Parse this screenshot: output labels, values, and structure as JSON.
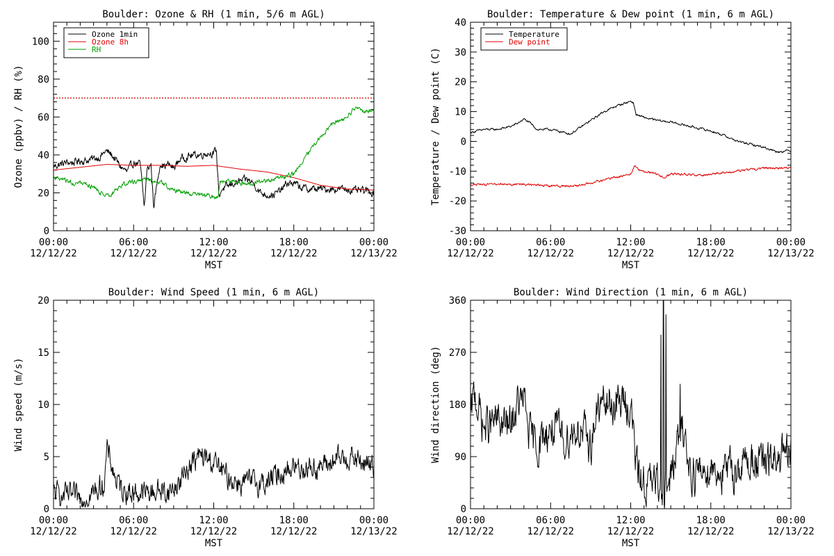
{
  "chart_data": [
    {
      "type": "line",
      "title": "Boulder: Ozone & RH (1 min, 5/6 m AGL)",
      "xlabel": "MST",
      "ylabel": "Ozone (ppbv) / RH (%)",
      "xlim": [
        0,
        24
      ],
      "ylim": [
        0,
        110
      ],
      "yticks": [
        0,
        20,
        40,
        60,
        80,
        100
      ],
      "xticks": [
        {
          "time": "00:00",
          "date": "12/12/22"
        },
        {
          "time": "06:00",
          "date": "12/12/22"
        },
        {
          "time": "12:00",
          "date": "12/12/22"
        },
        {
          "time": "18:00",
          "date": "12/12/22"
        },
        {
          "time": "00:00",
          "date": "12/13/22"
        }
      ],
      "legend_position": "top-left",
      "reference_line": {
        "y": 70,
        "color": "#d01010",
        "style": "dotted"
      },
      "series": [
        {
          "name": "Ozone 1min",
          "color": "#000000",
          "noise": 1.6,
          "x": [
            0,
            0.5,
            1,
            1.5,
            2,
            2.5,
            3,
            3.5,
            3.9,
            4.2,
            4.6,
            5,
            5.5,
            6,
            6.5,
            6.8,
            7,
            7.3,
            7.5,
            8,
            8.3,
            8.6,
            9,
            9.5,
            10,
            10.5,
            11,
            11.5,
            12,
            12.2,
            12.4,
            12.6,
            13,
            13.5,
            14,
            14.5,
            15,
            15.5,
            16,
            16.5,
            17,
            17.5,
            18,
            18.5,
            19,
            19.5,
            20,
            20.5,
            21,
            21.5,
            22,
            22.5,
            23,
            23.5,
            24
          ],
          "y": [
            34,
            35,
            36,
            36,
            37,
            37,
            38,
            39,
            42,
            41,
            38,
            34,
            31,
            36,
            35,
            12,
            32,
            35,
            13,
            36,
            34,
            35,
            33,
            38,
            39,
            40,
            40,
            41,
            41,
            42,
            18,
            22,
            23,
            25,
            26,
            27,
            25,
            20,
            19,
            19,
            21,
            25,
            25,
            23,
            22,
            22,
            22,
            22,
            22,
            22,
            22,
            21,
            21,
            21,
            20
          ]
        },
        {
          "name": "Ozone 8h",
          "color": "#e00000",
          "noise": 0,
          "x": [
            0,
            2,
            4,
            6,
            8,
            10,
            12,
            14,
            16,
            18,
            20,
            22,
            24
          ],
          "y": [
            32,
            33.5,
            35,
            34.5,
            34.5,
            34,
            34.5,
            32.5,
            31,
            28,
            24,
            22,
            21.5
          ]
        },
        {
          "name": "RH",
          "color": "#00a000",
          "noise": 1.0,
          "x": [
            0,
            1,
            2,
            3,
            3.8,
            4.3,
            5,
            6,
            7,
            8,
            9,
            10,
            11,
            12,
            12.3,
            12.5,
            13,
            14,
            15,
            16,
            17,
            18,
            18.5,
            19,
            20,
            21,
            21.5,
            22,
            22.7,
            23,
            23.5,
            24
          ],
          "y": [
            28,
            26,
            25,
            23,
            18,
            19,
            24,
            26,
            27,
            26,
            21,
            20,
            19,
            18,
            17,
            26,
            26,
            25,
            25,
            26,
            28,
            30,
            35,
            40,
            50,
            57,
            58,
            60,
            66,
            63,
            63,
            63
          ]
        }
      ]
    },
    {
      "type": "line",
      "title": "Boulder: Temperature & Dew point (1 min, 6 m AGL)",
      "xlabel": "MST",
      "ylabel": "Temperature / Dew point (C)",
      "xlim": [
        0,
        24
      ],
      "ylim": [
        -30,
        40
      ],
      "yticks": [
        -30,
        -20,
        -10,
        0,
        10,
        20,
        30,
        40
      ],
      "xticks": [
        {
          "time": "00:00",
          "date": "12/12/22"
        },
        {
          "time": "06:00",
          "date": "12/12/22"
        },
        {
          "time": "12:00",
          "date": "12/12/22"
        },
        {
          "time": "18:00",
          "date": "12/12/22"
        },
        {
          "time": "00:00",
          "date": "12/13/22"
        }
      ],
      "legend_position": "top-left",
      "series": [
        {
          "name": "Temperature",
          "color": "#000000",
          "noise": 0.3,
          "x": [
            0,
            1,
            2,
            3,
            3.5,
            4,
            4.5,
            5,
            6,
            7,
            7.5,
            8,
            9,
            10,
            11,
            12,
            12.2,
            12.4,
            13,
            14,
            15,
            16,
            17,
            18,
            19,
            20,
            21,
            22,
            23,
            24
          ],
          "y": [
            3,
            4,
            4,
            5,
            6,
            7.5,
            6,
            4,
            4,
            3,
            2.5,
            4,
            7,
            10,
            12,
            13.5,
            13,
            9,
            8,
            7,
            6.5,
            5.5,
            4.5,
            3.5,
            2,
            0,
            -1,
            -2,
            -3.5,
            -3
          ]
        },
        {
          "name": "Dew point",
          "color": "#e00000",
          "noise": 0.3,
          "x": [
            0,
            2,
            4,
            6,
            8,
            9,
            10,
            11,
            11.5,
            12,
            12.3,
            12.6,
            13,
            14,
            14.5,
            15,
            16,
            17,
            18,
            19,
            20,
            21,
            22,
            23,
            24
          ],
          "y": [
            -14.5,
            -14.5,
            -14.5,
            -15,
            -15,
            -14,
            -13,
            -12,
            -11.5,
            -11,
            -8,
            -9.5,
            -10,
            -11,
            -12,
            -11,
            -11,
            -11.5,
            -11,
            -10.5,
            -10,
            -9.5,
            -9,
            -9,
            -9
          ]
        }
      ]
    },
    {
      "type": "line",
      "title": "Boulder: Wind Speed (1 min, 6 m AGL)",
      "xlabel": "MST",
      "ylabel": "Wind speed (m/s)",
      "xlim": [
        0,
        24
      ],
      "ylim": [
        0,
        20
      ],
      "yticks": [
        0,
        5,
        10,
        15,
        20
      ],
      "xticks": [
        {
          "time": "00:00",
          "date": "12/12/22"
        },
        {
          "time": "06:00",
          "date": "12/12/22"
        },
        {
          "time": "12:00",
          "date": "12/12/22"
        },
        {
          "time": "18:00",
          "date": "12/12/22"
        },
        {
          "time": "00:00",
          "date": "12/13/22"
        }
      ],
      "series": [
        {
          "name": "",
          "color": "#000000",
          "noise": 0.9,
          "x": [
            0,
            1,
            2,
            3,
            3.8,
            4,
            4.3,
            4.6,
            5,
            6,
            7,
            8,
            8.5,
            9,
            9.5,
            10,
            11,
            12,
            13,
            14,
            15,
            16,
            17,
            18,
            19,
            20,
            21,
            22,
            23,
            24
          ],
          "y": [
            1.5,
            1.2,
            1,
            1.5,
            2.5,
            5.5,
            4.5,
            3,
            2,
            1.5,
            1.5,
            1.8,
            1.5,
            2,
            2.5,
            4,
            5,
            4.5,
            3,
            2.5,
            2.5,
            2.5,
            3.5,
            4,
            4,
            4,
            4.5,
            5,
            4.5,
            4
          ]
        }
      ]
    },
    {
      "type": "line",
      "title": "Boulder: Wind Direction (1 min, 6 m AGL)",
      "xlabel": "MST",
      "ylabel": "Wind direction (deg)",
      "xlim": [
        0,
        24
      ],
      "ylim": [
        0,
        360
      ],
      "yticks": [
        0,
        90,
        180,
        270,
        360
      ],
      "xticks": [
        {
          "time": "00:00",
          "date": "12/12/22"
        },
        {
          "time": "06:00",
          "date": "12/12/22"
        },
        {
          "time": "12:00",
          "date": "12/12/22"
        },
        {
          "time": "18:00",
          "date": "12/12/22"
        },
        {
          "time": "00:00",
          "date": "12/13/22"
        }
      ],
      "series": [
        {
          "name": "",
          "color": "#000000",
          "noise": 28,
          "x": [
            0,
            0.3,
            1,
            2,
            3,
            3.5,
            4,
            4.5,
            5,
            6,
            7,
            8,
            9,
            9.5,
            10,
            11,
            11.5,
            12,
            12.2,
            12.5,
            13,
            14,
            14.5,
            15,
            15.5,
            16,
            16.3,
            16.6,
            17,
            18,
            19,
            20,
            21,
            22,
            23,
            24
          ],
          "y": [
            150,
            200,
            140,
            150,
            140,
            180,
            185,
            120,
            110,
            140,
            120,
            140,
            110,
            170,
            180,
            180,
            185,
            175,
            130,
            60,
            45,
            40,
            45,
            50,
            110,
            140,
            80,
            65,
            60,
            75,
            60,
            70,
            85,
            75,
            85,
            90
          ],
          "spikes": [
            {
              "x": 14.25,
              "y": 300
            },
            {
              "x": 14.45,
              "y": 360
            },
            {
              "x": 14.65,
              "y": 335
            },
            {
              "x": 15.7,
              "y": 215
            }
          ]
        }
      ]
    }
  ]
}
